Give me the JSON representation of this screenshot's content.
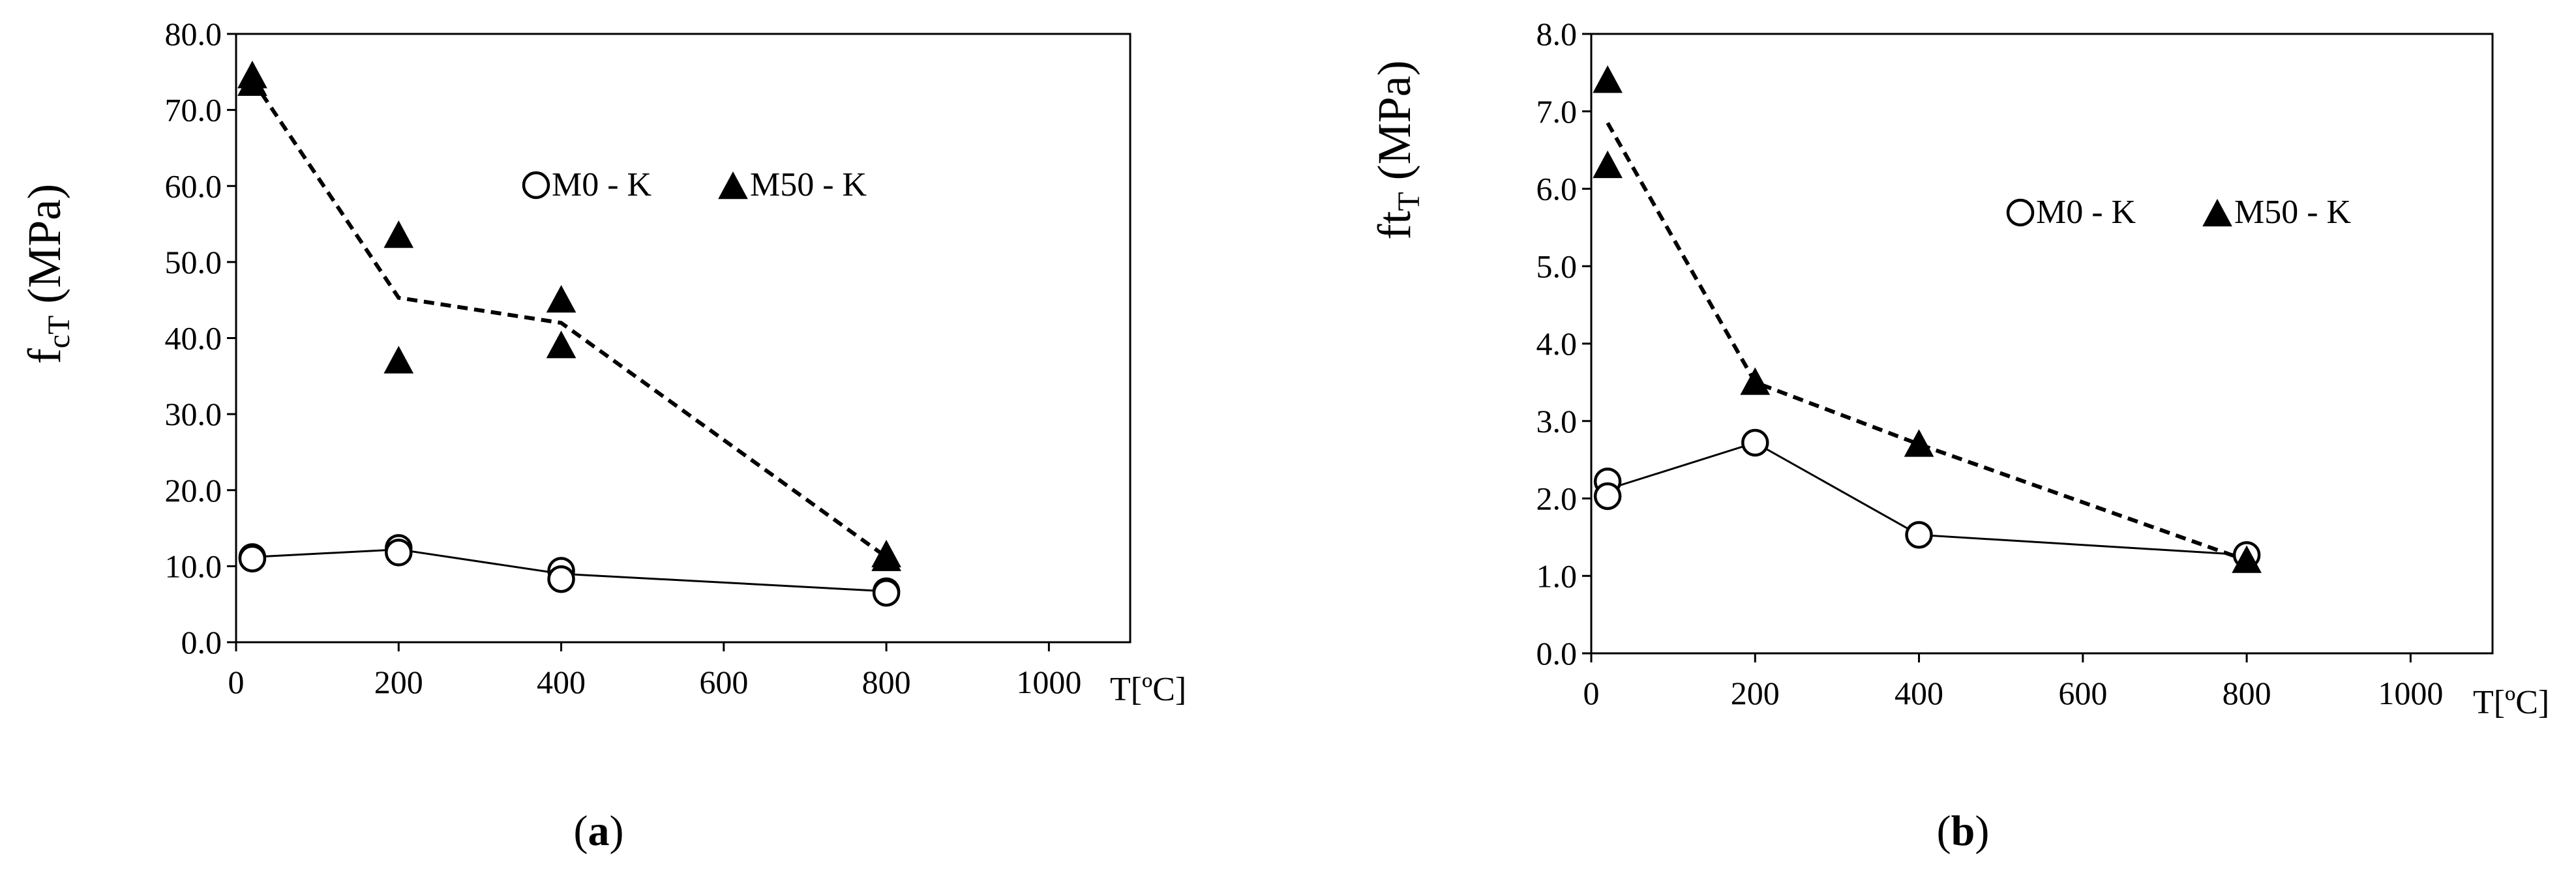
{
  "chart_data": [
    {
      "type": "scatter",
      "panel": "a",
      "ylabel_main": "f",
      "ylabel_sub": "cT",
      "ylabel_unit": "(MPa)",
      "xlabel": "T[ºC]",
      "xlim": [
        0,
        1100
      ],
      "ylim": [
        0,
        80
      ],
      "xticks": [
        "0",
        "200",
        "400",
        "600",
        "800",
        "1000"
      ],
      "xtick_values": [
        0,
        200,
        400,
        600,
        800,
        1000
      ],
      "yticks": [
        "0.0",
        "10.0",
        "20.0",
        "30.0",
        "40.0",
        "50.0",
        "60.0",
        "70.0",
        "80.0"
      ],
      "ytick_values": [
        0,
        10,
        20,
        30,
        40,
        50,
        60,
        70,
        80
      ],
      "legend": [
        "M0 - K",
        "M50 - K"
      ],
      "series": [
        {
          "name": "M0 - K",
          "marker": "circle",
          "points": [
            [
              20,
              11.2
            ],
            [
              20,
              11.0
            ],
            [
              200,
              12.4
            ],
            [
              200,
              11.8
            ],
            [
              400,
              9.4
            ],
            [
              400,
              8.3
            ],
            [
              800,
              6.7
            ],
            [
              800,
              6.5
            ]
          ],
          "trend": [
            [
              20,
              11.2
            ],
            [
              200,
              12.2
            ],
            [
              400,
              9.0
            ],
            [
              800,
              6.7
            ]
          ],
          "trend_style": "solid"
        },
        {
          "name": "M50 - K",
          "marker": "triangle",
          "points": [
            [
              20,
              74.5
            ],
            [
              20,
              73.5
            ],
            [
              200,
              53.5
            ],
            [
              200,
              37.0
            ],
            [
              400,
              45.0
            ],
            [
              400,
              39.0
            ],
            [
              800,
              11.5
            ],
            [
              800,
              11.0
            ]
          ],
          "trend": [
            [
              20,
              74.0
            ],
            [
              200,
              45.3
            ],
            [
              400,
              42.0
            ],
            [
              800,
              11.2
            ]
          ],
          "trend_style": "dashed"
        }
      ],
      "caption_letter": "a"
    },
    {
      "type": "scatter",
      "panel": "b",
      "ylabel_main": "ft",
      "ylabel_sub": "T",
      "ylabel_unit": "(MPa)",
      "xlabel": "T[ºC]",
      "xlim": [
        0,
        1100
      ],
      "ylim": [
        0,
        8
      ],
      "xticks": [
        "0",
        "200",
        "400",
        "600",
        "800",
        "1000"
      ],
      "xtick_values": [
        0,
        200,
        400,
        600,
        800,
        1000
      ],
      "yticks": [
        "0.0",
        "1.0",
        "2.0",
        "3.0",
        "4.0",
        "5.0",
        "6.0",
        "7.0",
        "8.0"
      ],
      "ytick_values": [
        0,
        1,
        2,
        3,
        4,
        5,
        6,
        7,
        8
      ],
      "legend": [
        "M0 - K",
        "M50 - K"
      ],
      "series": [
        {
          "name": "M0 - K",
          "marker": "circle",
          "points": [
            [
              20,
              2.22
            ],
            [
              20,
              2.03
            ],
            [
              200,
              2.72
            ],
            [
              400,
              1.53
            ],
            [
              800,
              1.27
            ]
          ],
          "trend": [
            [
              20,
              2.12
            ],
            [
              200,
              2.72
            ],
            [
              400,
              1.53
            ],
            [
              800,
              1.27
            ]
          ],
          "trend_style": "solid"
        },
        {
          "name": "M50 - K",
          "marker": "triangle",
          "points": [
            [
              20,
              7.4
            ],
            [
              20,
              6.3
            ],
            [
              200,
              3.5
            ],
            [
              400,
              2.7
            ],
            [
              800,
              1.2
            ]
          ],
          "trend": [
            [
              20,
              6.85
            ],
            [
              200,
              3.5
            ],
            [
              400,
              2.7
            ],
            [
              800,
              1.2
            ]
          ],
          "trend_style": "dashed"
        }
      ],
      "caption_letter": "b"
    }
  ]
}
